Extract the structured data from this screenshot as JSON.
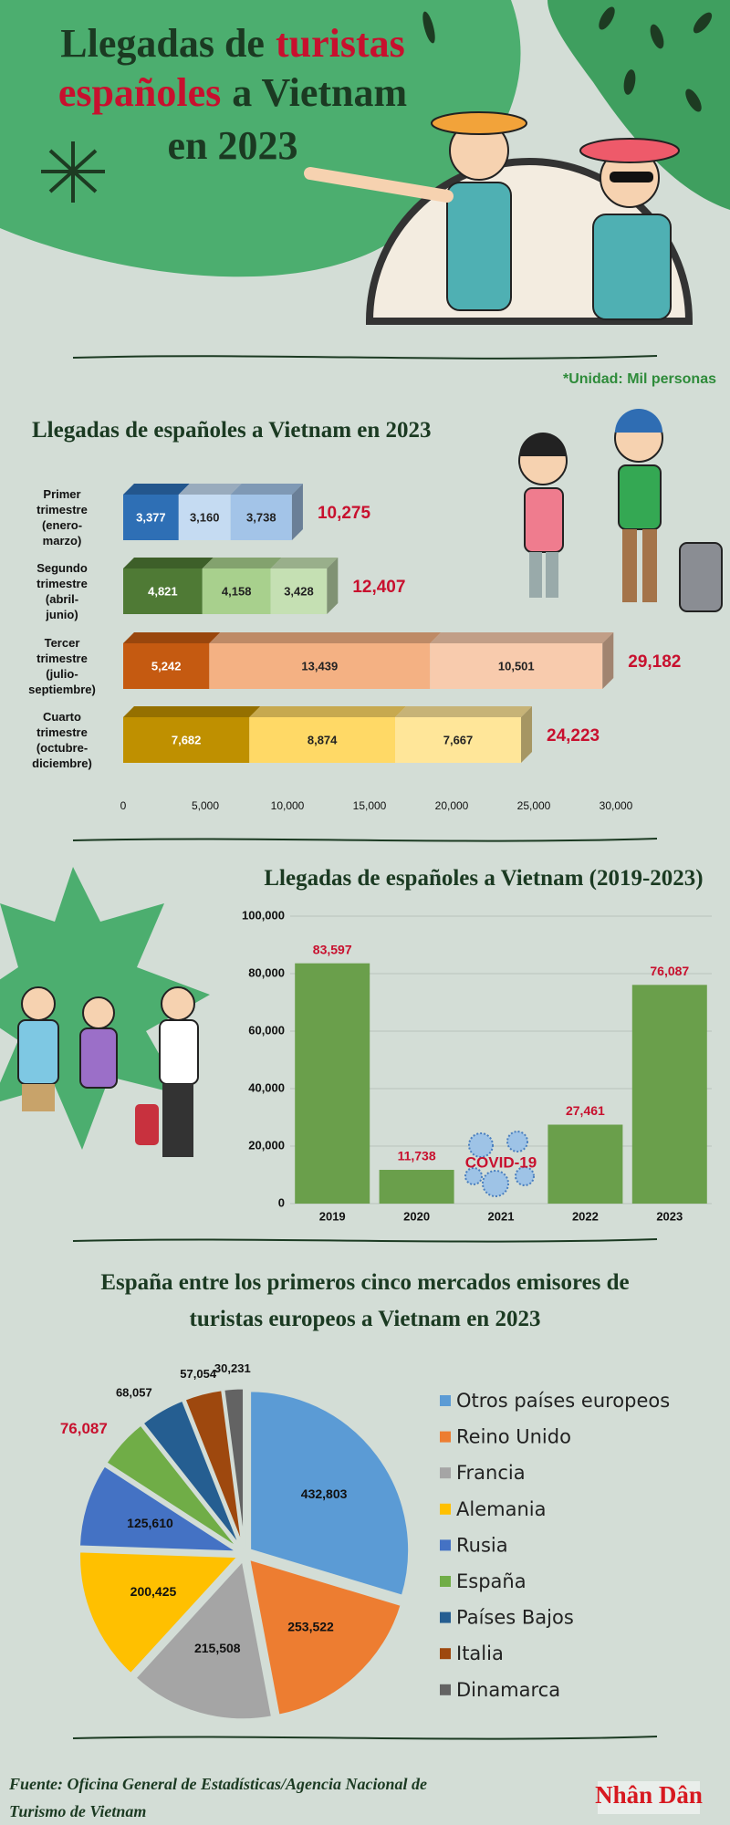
{
  "header": {
    "title_lines": [
      [
        {
          "text": "Llegadas de",
          "color": "#1b3a22"
        },
        {
          "text": "turistas",
          "color": "#c8102e"
        }
      ],
      [
        {
          "text": "españoles",
          "color": "#c8102e"
        },
        {
          "text": "a Vietnam",
          "color": "#1b3a22"
        }
      ],
      [
        {
          "text": "en 2023",
          "color": "#1b3a22"
        }
      ]
    ]
  },
  "unit_note": "*Unidad: Mil personas",
  "chart_data": [
    {
      "type": "hbar",
      "title": "Llegadas de españoles a Vietnam en 2023",
      "categories": [
        "Primer trimestre (enero-marzo)",
        "Segundo trimestre (abril-junio)",
        "Tercer trimestre (julio-septiembre)",
        "Cuarto trimestre (octubre-diciembre)"
      ],
      "stacks": [
        {
          "values": [
            3377,
            3160,
            3738
          ],
          "value_labels": [
            "3,377",
            "3,160",
            "3,738"
          ],
          "colors": [
            "#2e6fb5",
            "#c5dbf2",
            "#a3c4e8"
          ],
          "total": 10275,
          "total_label": "10,275"
        },
        {
          "values": [
            4821,
            4158,
            3428
          ],
          "value_labels": [
            "4,821",
            "4,158",
            "3,428"
          ],
          "colors": [
            "#4f7a35",
            "#a8d08d",
            "#c5e0b3"
          ],
          "total": 12407,
          "total_label": "12,407"
        },
        {
          "values": [
            5242,
            13439,
            10501
          ],
          "value_labels": [
            "5,242",
            "13,439",
            "10,501"
          ],
          "colors": [
            "#c55a11",
            "#f4b183",
            "#f8cbad"
          ],
          "total": 29182,
          "total_label": "29,182"
        },
        {
          "values": [
            7682,
            8874,
            7667
          ],
          "value_labels": [
            "7,682",
            "8,874",
            "7,667"
          ],
          "colors": [
            "#bf9000",
            "#ffd966",
            "#ffe699"
          ],
          "total": 24223,
          "total_label": "24,223"
        }
      ],
      "xlim": [
        0,
        30000
      ],
      "xticks": [
        0,
        {
          "value": 5000,
          "label": "5,000"
        },
        {
          "value": 10000,
          "label": "10,000"
        },
        {
          "value": 15000,
          "label": "15,000"
        },
        {
          "value": 20000,
          "label": "20,000"
        },
        {
          "value": 25000,
          "label": "25,000"
        },
        {
          "value": 30000,
          "label": "30,000"
        }
      ],
      "total_color": "#c8102e"
    },
    {
      "type": "bar",
      "title": "Llegadas de españoles a Vietnam (2019-2023)",
      "categories": [
        "2019",
        "2020",
        "2021",
        "2022",
        "2023"
      ],
      "values": [
        83597,
        11738,
        null,
        27461,
        76087
      ],
      "value_labels": [
        "83,597",
        "11,738",
        null,
        "27,461",
        "76,087"
      ],
      "annotations": [
        {
          "index": 2,
          "text": "COVID-19"
        }
      ],
      "color": "#6a9f4b",
      "label_color": "#c8102e",
      "ylim": [
        0,
        100000
      ],
      "yticks": [
        0,
        {
          "value": 20000,
          "label": "20,000"
        },
        {
          "value": 40000,
          "label": "40,000"
        },
        {
          "value": 60000,
          "label": "60,000"
        },
        {
          "value": 80000,
          "label": "80,000"
        },
        {
          "value": 100000,
          "label": "100,000"
        }
      ],
      "grid": true
    },
    {
      "type": "pie",
      "title": "España entre los primeros cinco mercados emisores de turistas europeos a Vietnam en 2023",
      "categories": [
        "Otros países europeos",
        "Reino Unido",
        "Francia",
        "Alemania",
        "Rusia",
        "España",
        "Países Bajos",
        "Italia",
        "Dinamarca"
      ],
      "values": [
        432803,
        253522,
        215508,
        200425,
        125610,
        76087,
        68057,
        57054,
        30231
      ],
      "value_labels": [
        "432,803",
        "253,522",
        "215,508",
        "200,425",
        "125,610",
        "76,087",
        "68,057",
        "57,054",
        "30,231"
      ],
      "colors": [
        "#5b9bd5",
        "#ed7d31",
        "#a5a5a5",
        "#ffc000",
        "#4472c4",
        "#70ad47",
        "#255e91",
        "#9e480e",
        "#636363"
      ],
      "label_colors": [
        "#111",
        "#111",
        "#111",
        "#111",
        "#111",
        "#c8102e",
        "#111",
        "#111",
        "#111"
      ],
      "legend": "right"
    }
  ],
  "source": "Fuente: Oficina General de Estadísticas/Agencia Nacional de Turismo de Vietnam",
  "logo": "Nhân Dân"
}
